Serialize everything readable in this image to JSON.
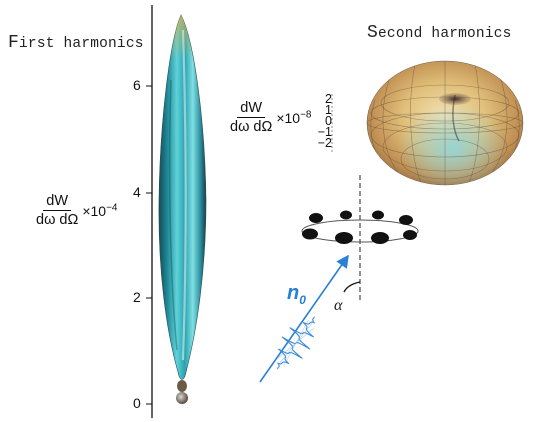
{
  "titles": {
    "first_cap": "F",
    "first_rest": "irst harmonics",
    "second_cap": "S",
    "second_rest": "econd harmonics"
  },
  "first_axis": {
    "ticks": [
      "6",
      "4",
      "2",
      "0"
    ],
    "label_num": "dW",
    "label_den": "dω dΩ",
    "factor_base": "×10",
    "factor_exp": "−4"
  },
  "second_axis": {
    "ticks": [
      "2",
      "1",
      "0",
      "−1",
      "−2"
    ],
    "label_num": "dW",
    "label_den": "dω dΩ",
    "factor_base": "×10",
    "factor_exp": "−8"
  },
  "setup": {
    "beam_label": "n",
    "beam_subscript": "0",
    "angle_label": "α"
  },
  "colors": {
    "lobe": "#3fb3c0",
    "beam_arrow": "#2a7fd6",
    "torus": "#d9b36a"
  }
}
